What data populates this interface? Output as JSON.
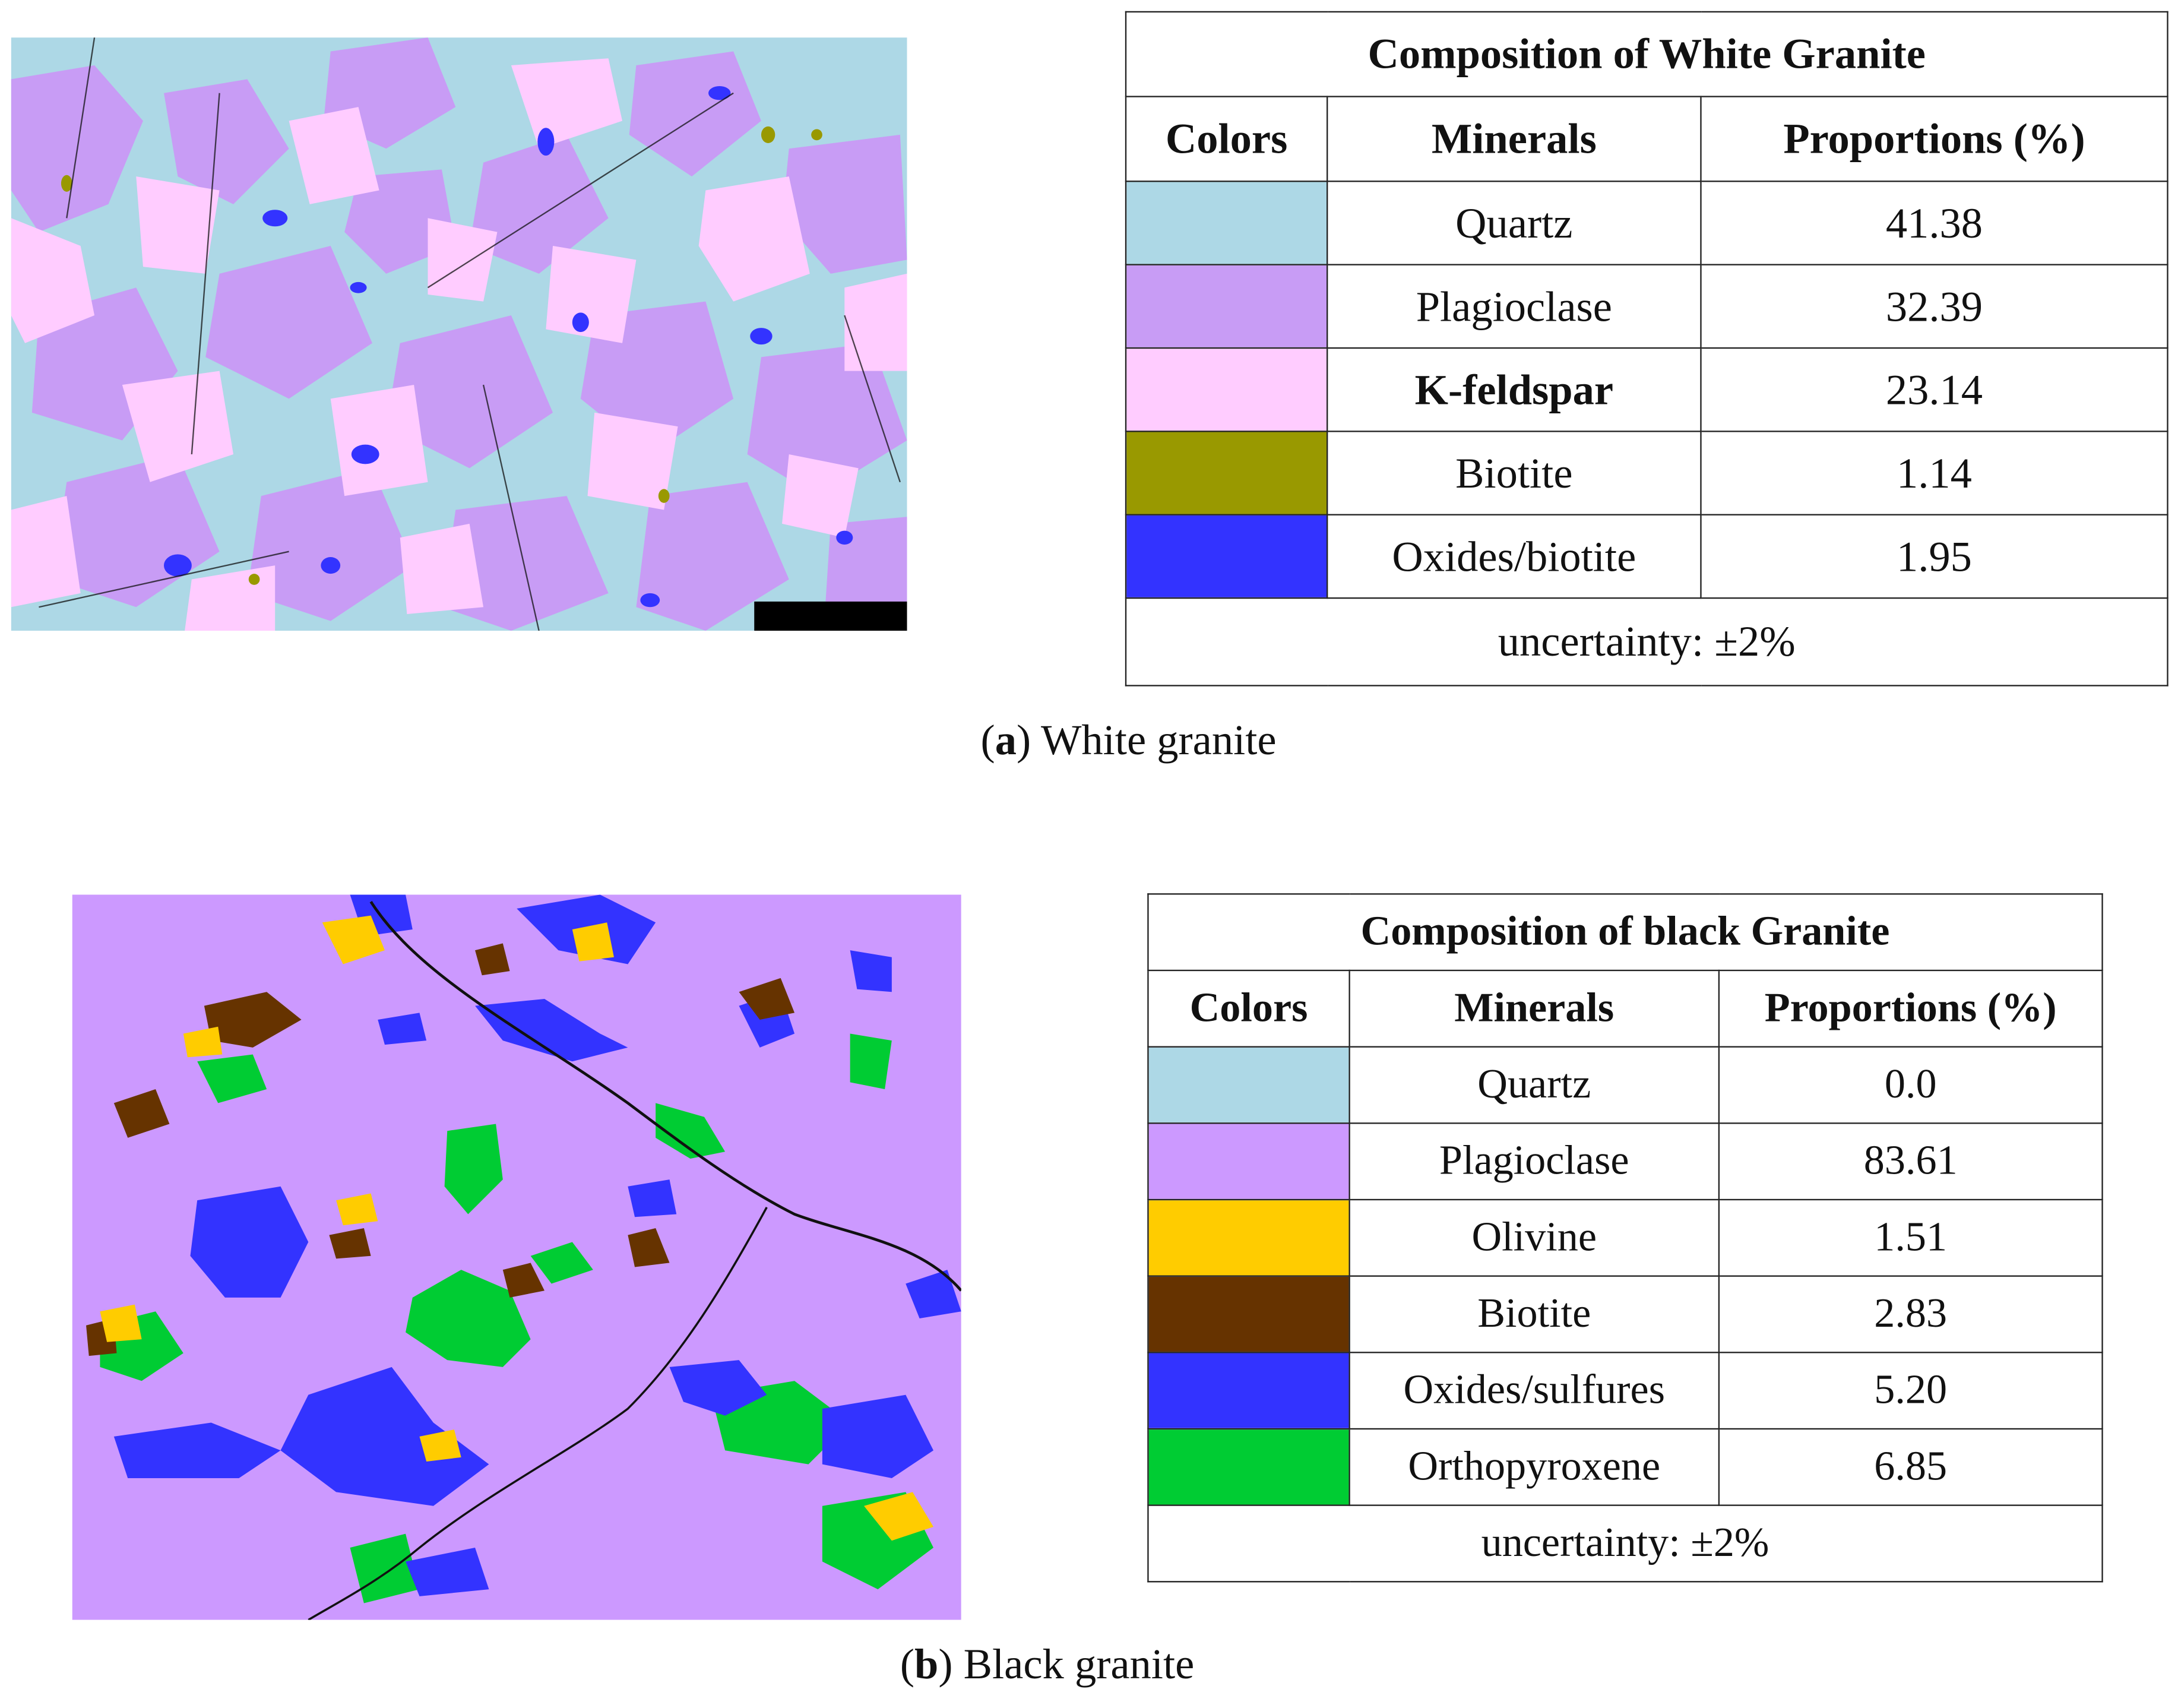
{
  "panel_a": {
    "table": {
      "title": "Composition of White Granite",
      "headers": [
        "Colors",
        "Minerals",
        "Proportions (%)"
      ],
      "rows": [
        {
          "color": "#add8e6",
          "mineral": "Quartz",
          "proportion": "41.38"
        },
        {
          "color": "#c89cf5",
          "mineral": "Plagioclase",
          "proportion": "32.39"
        },
        {
          "color": "#ffccff",
          "mineral": "K-feldspar",
          "proportion": "23.14"
        },
        {
          "color": "#999900",
          "mineral": "Biotite",
          "proportion": "1.14"
        },
        {
          "color": "#3333ff",
          "mineral": "Oxides/biotite",
          "proportion": "1.95"
        }
      ],
      "footer": "uncertainty: ±2%"
    },
    "caption_letter": "a",
    "caption_text": "White granite"
  },
  "panel_b": {
    "table": {
      "title": "Composition of black Granite",
      "headers": [
        "Colors",
        "Minerals",
        "Proportions (%)"
      ],
      "rows": [
        {
          "color": "#add8e6",
          "mineral": "Quartz",
          "proportion": "0.0"
        },
        {
          "color": "#cc99ff",
          "mineral": "Plagioclase",
          "proportion": "83.61"
        },
        {
          "color": "#ffcc00",
          "mineral": "Olivine",
          "proportion": "1.51"
        },
        {
          "color": "#663300",
          "mineral": "Biotite",
          "proportion": "2.83"
        },
        {
          "color": "#3333ff",
          "mineral": "Oxides/sulfures",
          "proportion": "5.20"
        },
        {
          "color": "#00cc33",
          "mineral": "Orthopyroxene",
          "proportion": "6.85"
        }
      ],
      "footer": "uncertainty: ±2%"
    },
    "caption_letter": "b",
    "caption_text": "Black granite"
  }
}
